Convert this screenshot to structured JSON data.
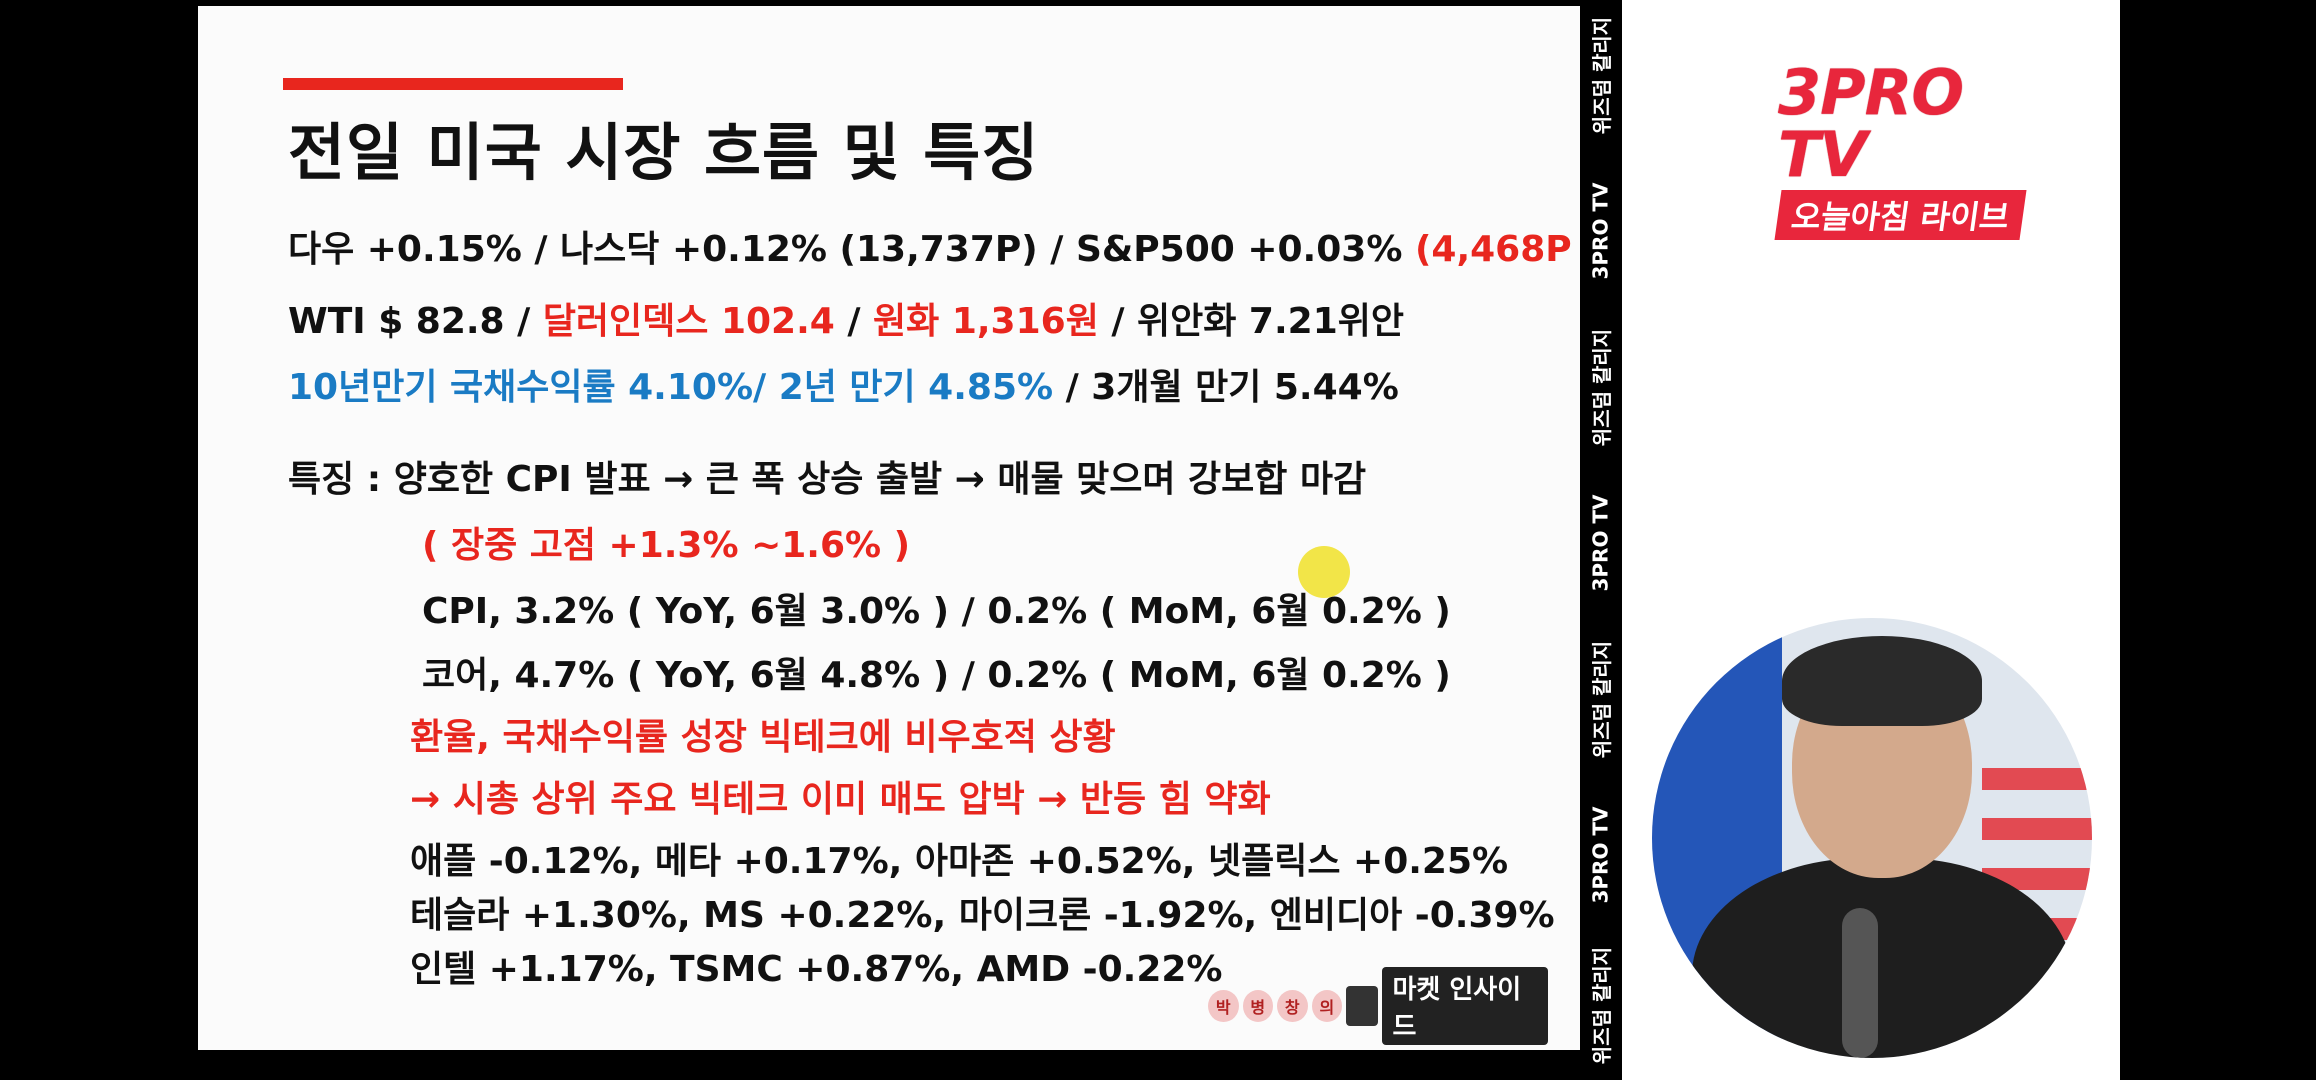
{
  "slide": {
    "title": "전일 미국 시장 흐름 및 특징",
    "line1": {
      "a": "다우 +0.15% / 나스닥 +0.12% (13,737P) / S&P500 +0.03% ",
      "b": "(4,468P",
      "c": " )"
    },
    "line2": {
      "a": "WTI $ 82.8 / ",
      "b": "달러인덱스 102.4",
      "c": " / ",
      "d": "원화 1,316원",
      "e": " / 위안화 7.21위안"
    },
    "line3": {
      "a": "10년만기 국채수익률 4.10%/ 2년 만기 4.85%",
      "b": " / 3개월 만기 5.44%"
    },
    "feature_line": "특징 :  양호한 CPI 발표 → 큰 폭 상승 출발 → 매물 맞으며 강보합 마감",
    "intraday": "( 장중 고점 +1.3% ~1.6% )",
    "cpi": "CPI, 3.2% ( YoY, 6월 3.0% ) /  0.2% ( MoM, 6월 0.2% )",
    "core": "코어, 4.7% ( YoY, 6월 4.8% ) / 0.2% ( MoM, 6월 0.2% )",
    "fx_note": "환율, 국채수익률 성장 빅테크에 비우호적 상황",
    "bigtech_note": "→ 시총 상위 주요 빅테크 이미 매도 압박 → 반등 힘 약화",
    "stocks1": "애플 -0.12%, 메타 +0.17%, 아마존 +0.52%, 넷플릭스 +0.25%",
    "stocks2": "테슬라 +1.30%, MS +0.22%, 마이크론 -1.92%, 엔비디아 -0.39%",
    "stocks3": "인텔 +1.17%, TSMC +0.87%, AMD -0.22%",
    "logo": {
      "c1": "박",
      "c2": "병",
      "c3": "창",
      "c4": "의",
      "banner": "마켓 인사이드"
    }
  },
  "strip": {
    "items": [
      "위즈덤 칼리지",
      "3PRO TV",
      "위즈덤 칼리지",
      "3PRO TV",
      "위즈덤 칼리지",
      "3PRO TV",
      "위즈덤 칼리지"
    ]
  },
  "brand": {
    "name": "3PRO TV",
    "sub": "오늘아침 라이브"
  },
  "colors": {
    "accent_red": "#e8261e",
    "accent_blue": "#1a7bc4",
    "brand_red": "#e8263c"
  }
}
